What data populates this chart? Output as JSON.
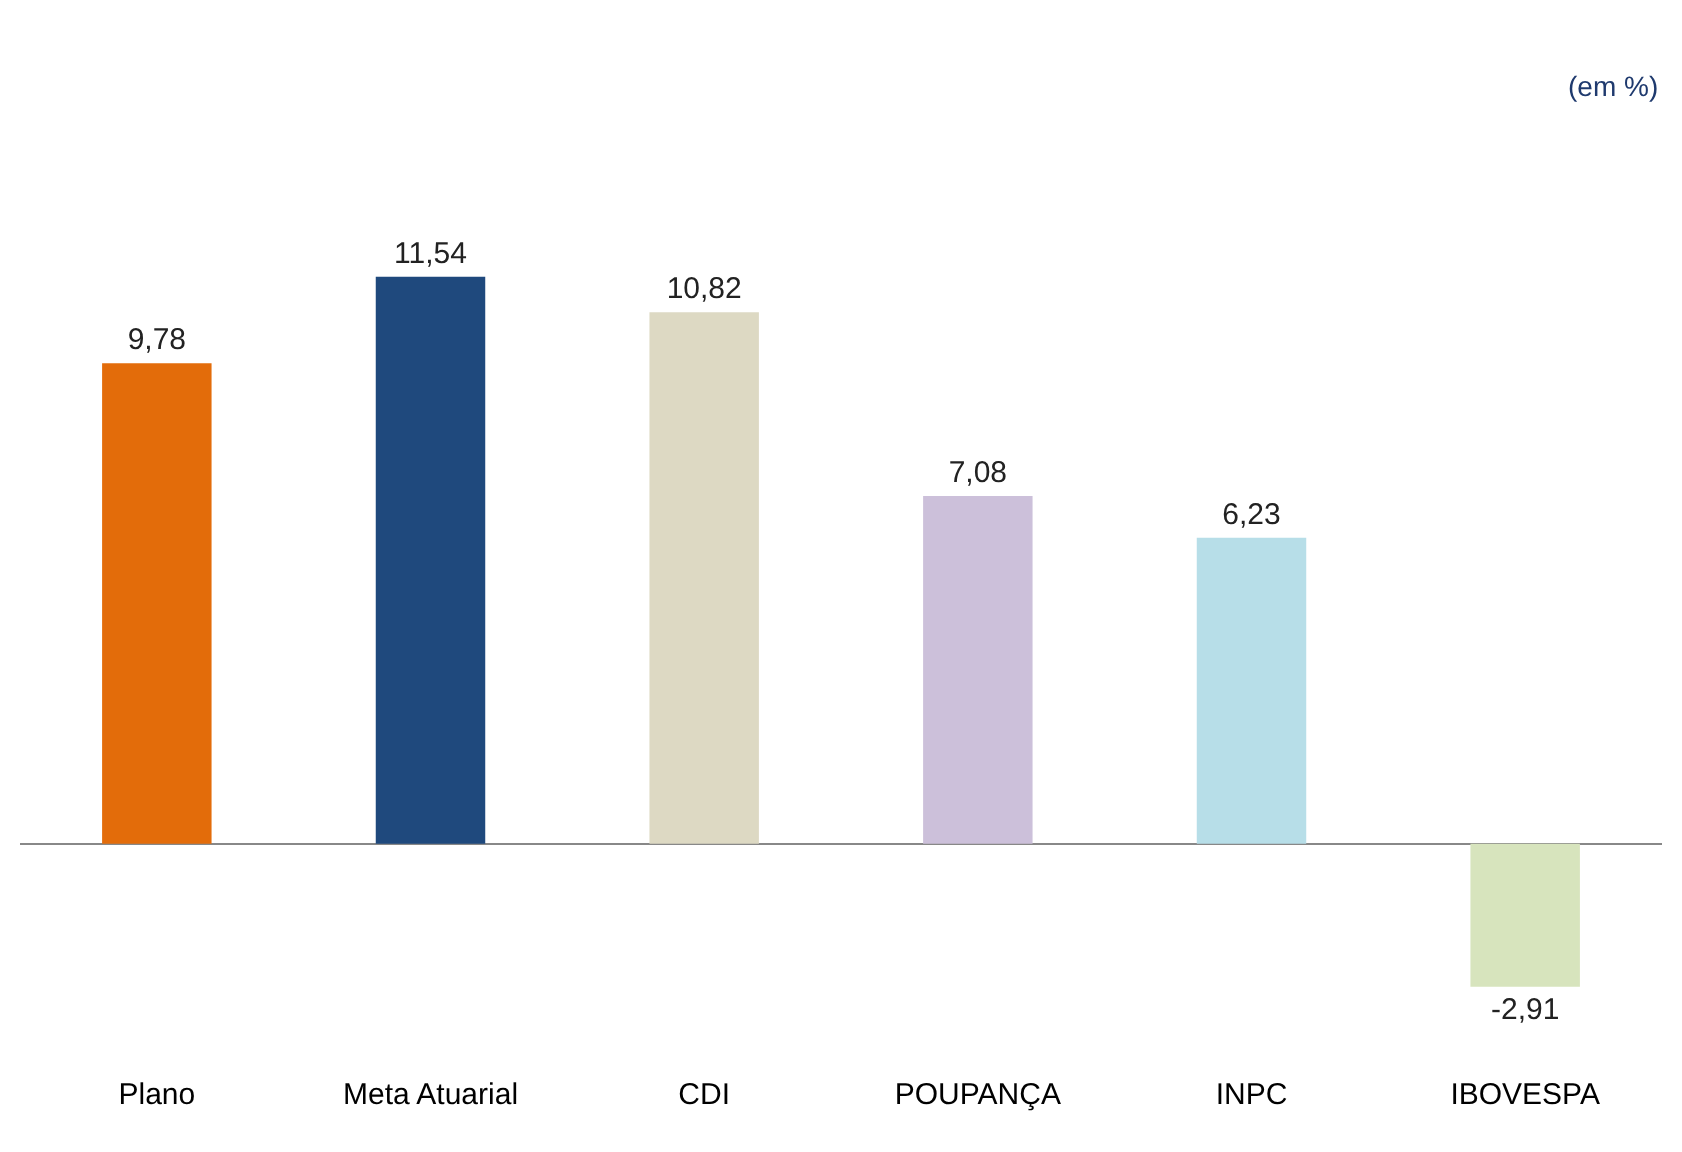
{
  "chart_data": {
    "type": "bar",
    "categories": [
      "Plano",
      "Meta Atuarial",
      "CDI",
      "POUPANÇA",
      "INPC",
      "IBOVESPA"
    ],
    "values": [
      9.78,
      11.54,
      10.82,
      7.08,
      6.23,
      -2.91
    ],
    "colors": [
      "#e36c0a",
      "#1f497d",
      "#ddd9c3",
      "#ccc0da",
      "#b7dee8",
      "#d7e4bd"
    ],
    "value_labels": [
      "9,78",
      "11,54",
      "10,82",
      "7,08",
      "6,23",
      "-2,91"
    ],
    "annotations": [
      "(em %)"
    ]
  }
}
